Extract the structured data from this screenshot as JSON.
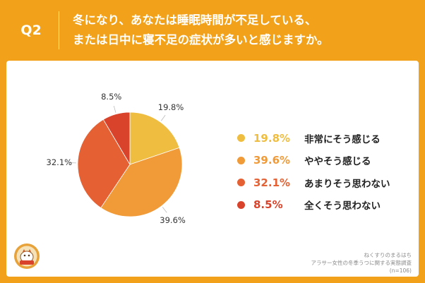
{
  "header": {
    "q_label": "Q2",
    "question_line1": "冬になり、あなたは睡眠時間が不足している、",
    "question_line2": "または日中に寝不足の症状が多いと感じますか。"
  },
  "chart_data": {
    "type": "pie",
    "title": "",
    "start_angle_deg": 0,
    "direction": "clockwise",
    "slices": [
      {
        "label": "非常にそう感じる",
        "value": 19.8,
        "display": "19.8%",
        "color": "#EFBD3F"
      },
      {
        "label": "ややそう感じる",
        "value": 39.6,
        "display": "39.6%",
        "color": "#F09A38"
      },
      {
        "label": "あまりそう思わない",
        "value": 32.1,
        "display": "32.1%",
        "color": "#E56133"
      },
      {
        "label": "全くそう思わない",
        "value": 8.5,
        "display": "8.5%",
        "color": "#D9432B"
      }
    ],
    "legend_position": "right"
  },
  "footer": {
    "line1": "ねくすりのまるはち",
    "line2": "アラサー女性の冬季うつに関する実態調査",
    "line3": "(n=106)"
  },
  "colors": {
    "background": "#F2A21A",
    "card": "#FFFFFF"
  },
  "icons": {
    "logo": "maruhachi-logo"
  }
}
